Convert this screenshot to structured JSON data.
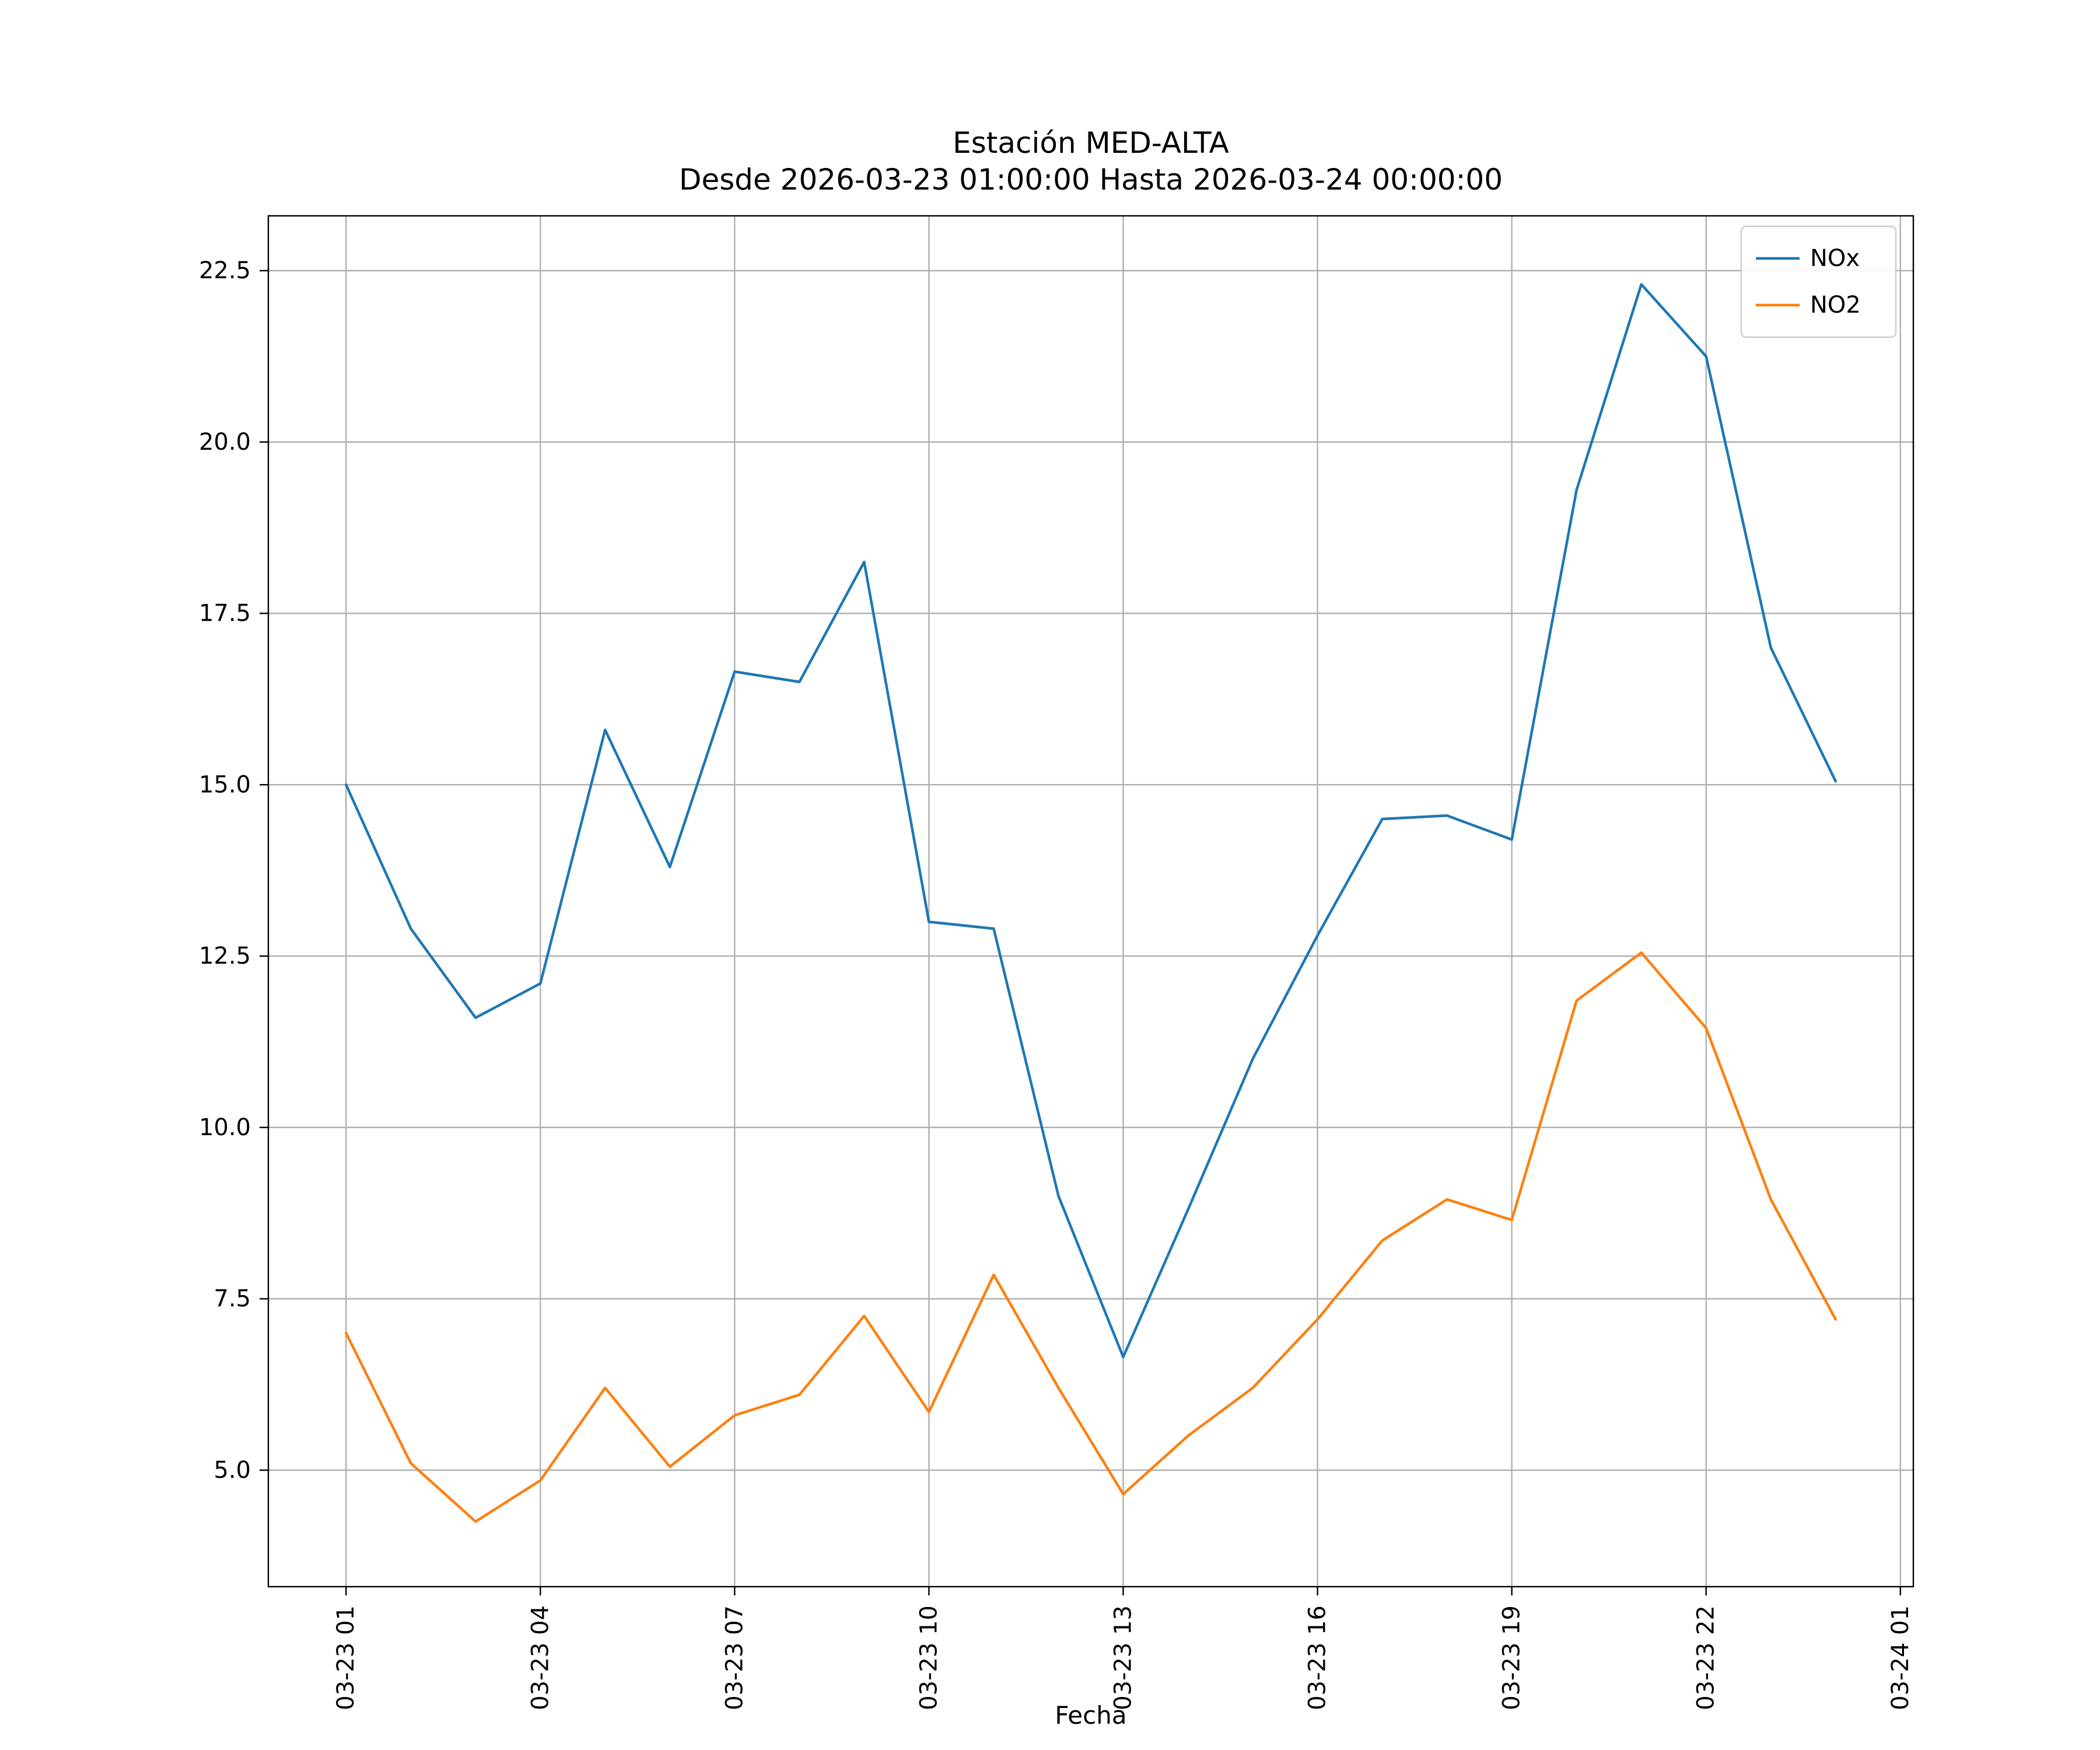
{
  "title": "Estación MED-ALTA",
  "subtitle": "Desde 2026-03-23 01:00:00 Hasta 2026-03-24 00:00:00",
  "xlabel": "Fecha",
  "legend": {
    "entries": [
      {
        "label": "NOx",
        "color": "#1f77b4"
      },
      {
        "label": "NO2",
        "color": "#ff7f0e"
      }
    ],
    "position": "upper right"
  },
  "chart_data": {
    "type": "line",
    "title": "Estación MED-ALTA",
    "subtitle": "Desde 2026-03-23 01:00:00 Hasta 2026-03-24 00:00:00",
    "xlabel": "Fecha",
    "ylabel": "",
    "grid": true,
    "legend_position": "upper right",
    "x_hours": [
      1,
      2,
      3,
      4,
      5,
      6,
      7,
      8,
      9,
      10,
      11,
      12,
      13,
      14,
      15,
      16,
      17,
      18,
      19,
      20,
      21,
      22,
      23,
      24
    ],
    "series": [
      {
        "name": "NOx",
        "color": "#1f77b4",
        "values": [
          15.0,
          12.9,
          11.6,
          12.1,
          15.8,
          13.8,
          16.65,
          16.5,
          18.25,
          13.0,
          12.9,
          9.0,
          6.65,
          8.8,
          11.0,
          12.8,
          14.5,
          14.55,
          14.2,
          19.3,
          22.3,
          21.25,
          17.0,
          15.05
        ]
      },
      {
        "name": "NO2",
        "color": "#ff7f0e",
        "values": [
          7.0,
          5.1,
          4.25,
          4.85,
          6.2,
          5.05,
          5.8,
          6.1,
          7.25,
          5.85,
          7.85,
          6.2,
          4.65,
          5.5,
          6.2,
          7.2,
          8.35,
          8.95,
          8.65,
          11.85,
          12.55,
          11.45,
          8.95,
          7.2
        ]
      }
    ],
    "x_ticks": [
      {
        "x": 1,
        "label": "03-23 01"
      },
      {
        "x": 4,
        "label": "03-23 04"
      },
      {
        "x": 7,
        "label": "03-23 07"
      },
      {
        "x": 10,
        "label": "03-23 10"
      },
      {
        "x": 13,
        "label": "03-23 13"
      },
      {
        "x": 16,
        "label": "03-23 16"
      },
      {
        "x": 19,
        "label": "03-23 19"
      },
      {
        "x": 22,
        "label": "03-23 22"
      },
      {
        "x": 25,
        "label": "03-24 01"
      }
    ],
    "y_ticks": [
      {
        "value": 5.0,
        "label": "5.0"
      },
      {
        "value": 7.5,
        "label": "7.5"
      },
      {
        "value": 10.0,
        "label": "10.0"
      },
      {
        "value": 12.5,
        "label": "12.5"
      },
      {
        "value": 15.0,
        "label": "15.0"
      },
      {
        "value": 17.5,
        "label": "17.5"
      },
      {
        "value": 20.0,
        "label": "20.0"
      },
      {
        "value": 22.5,
        "label": "22.5"
      }
    ],
    "xlim": [
      -0.2,
      25.2
    ],
    "ylim": [
      3.3,
      23.3
    ],
    "grid_color": "#b0b0b0",
    "axes_color": "#000000",
    "background_color": "#ffffff"
  }
}
